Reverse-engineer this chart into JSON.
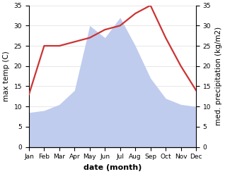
{
  "months": [
    "Jan",
    "Feb",
    "Mar",
    "Apr",
    "May",
    "Jun",
    "Jul",
    "Aug",
    "Sep",
    "Oct",
    "Nov",
    "Dec"
  ],
  "temp": [
    13.0,
    25.0,
    25.0,
    26.0,
    27.0,
    29.0,
    30.0,
    33.0,
    35.0,
    27.0,
    20.0,
    14.0
  ],
  "precip": [
    8.5,
    9.0,
    10.5,
    14.0,
    30.0,
    27.0,
    32.0,
    25.0,
    17.0,
    12.0,
    10.5,
    10.0
  ],
  "temp_color": "#cc3333",
  "precip_color": "#c0ccee",
  "background_color": "#ffffff",
  "ylim": [
    0,
    35
  ],
  "yticks": [
    0,
    5,
    10,
    15,
    20,
    25,
    30,
    35
  ],
  "xlabel": "date (month)",
  "ylabel_left": "max temp (C)",
  "ylabel_right": "med. precipitation (kg/m2)",
  "label_fontsize": 7.5,
  "tick_fontsize": 6.5,
  "xlabel_fontsize": 8,
  "linewidth": 1.6
}
